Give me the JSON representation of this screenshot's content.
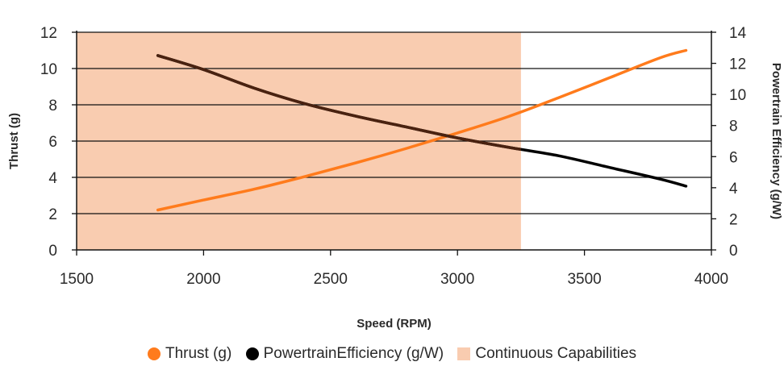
{
  "chart_data": {
    "type": "line",
    "xlabel": "Speed (RPM)",
    "ylabel_left": "Thrust (g)",
    "ylabel_right": "Powertrain Efficiency (g/W)",
    "xlim": [
      1500,
      4000
    ],
    "ylim_left": [
      0,
      12
    ],
    "ylim_right": [
      0,
      14
    ],
    "x_ticks": [
      "1500",
      "2000",
      "2500",
      "3000",
      "3500",
      "4000"
    ],
    "y_left_ticks": [
      "0",
      "2",
      "4",
      "6",
      "8",
      "10",
      "12"
    ],
    "y_right_ticks": [
      "0",
      "2",
      "4",
      "6",
      "8",
      "10",
      "12",
      "14"
    ],
    "grid": "horizontal",
    "legend_position": "bottom",
    "shaded_region": {
      "name": "Continuous Capabilities",
      "x_range": [
        1500,
        3250
      ],
      "color": "#f9ccb0"
    },
    "series": [
      {
        "name": "Thrust (g)",
        "axis": "left",
        "color": "#ff7b1c",
        "x": [
          1820,
          2000,
          2200,
          2400,
          2600,
          2800,
          3000,
          3200,
          3400,
          3600,
          3800,
          3900
        ],
        "values": [
          2.2,
          2.75,
          3.35,
          4.05,
          4.8,
          5.6,
          6.45,
          7.35,
          8.4,
          9.5,
          10.6,
          11.0
        ]
      },
      {
        "name": "PowertrainEfficiency (g/W)",
        "axis": "right",
        "color": "#000000",
        "x": [
          1820,
          2000,
          2200,
          2400,
          2600,
          2800,
          3000,
          3200,
          3400,
          3600,
          3800,
          3900
        ],
        "values": [
          12.5,
          11.6,
          10.4,
          9.4,
          8.6,
          7.9,
          7.2,
          6.6,
          6.05,
          5.3,
          4.55,
          4.1
        ]
      }
    ]
  },
  "legend": {
    "thrust_label": "Thrust (g)",
    "efficiency_label": "PowertrainEfficiency (g/W)",
    "region_label": "Continuous Capabilities"
  }
}
